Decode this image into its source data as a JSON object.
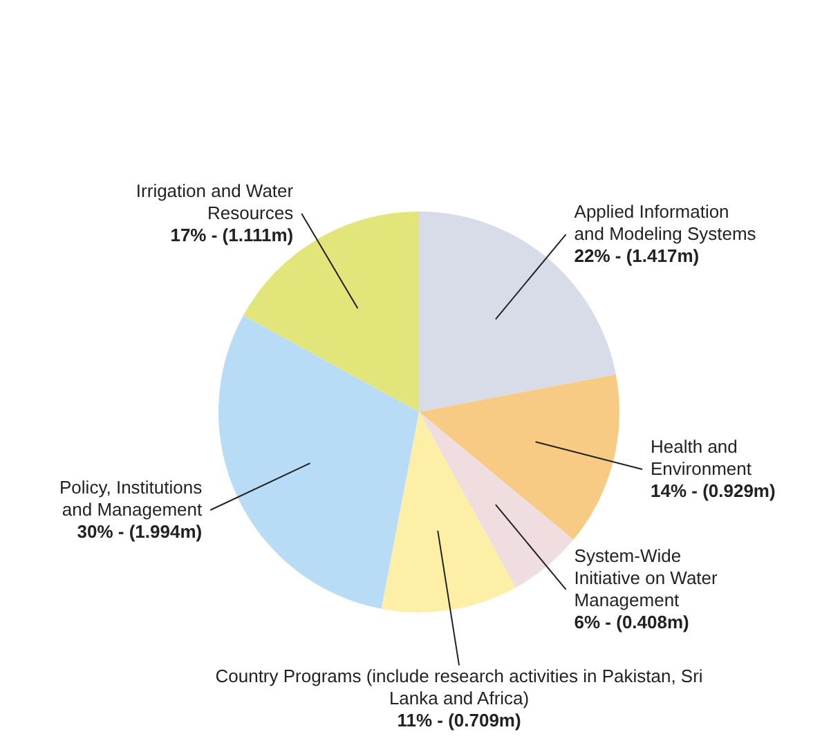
{
  "chart_data": {
    "type": "pie",
    "categories": [
      "Applied Information and Modeling Systems",
      "Health and Environment",
      "System-Wide Initiative on Water Management",
      "Country Programs (include research activities in Pakistan, Sri Lanka and Africa)",
      "Policy, Institutions and Management",
      "Irrigation and Water Resources"
    ],
    "values": [
      22,
      14,
      6,
      11,
      30,
      17
    ],
    "value_labels": [
      "22% - (1.417m)",
      "14% - (0.929m)",
      "6% - (0.408m)",
      "11% - (0.709m)",
      "30% - (1.994m)",
      "17% - (1.111m)"
    ],
    "colors": [
      "#d8dbe8",
      "#f8cb85",
      "#f0dde0",
      "#fdf0a6",
      "#b8dcf5",
      "#e2e67a"
    ],
    "legend": false
  }
}
